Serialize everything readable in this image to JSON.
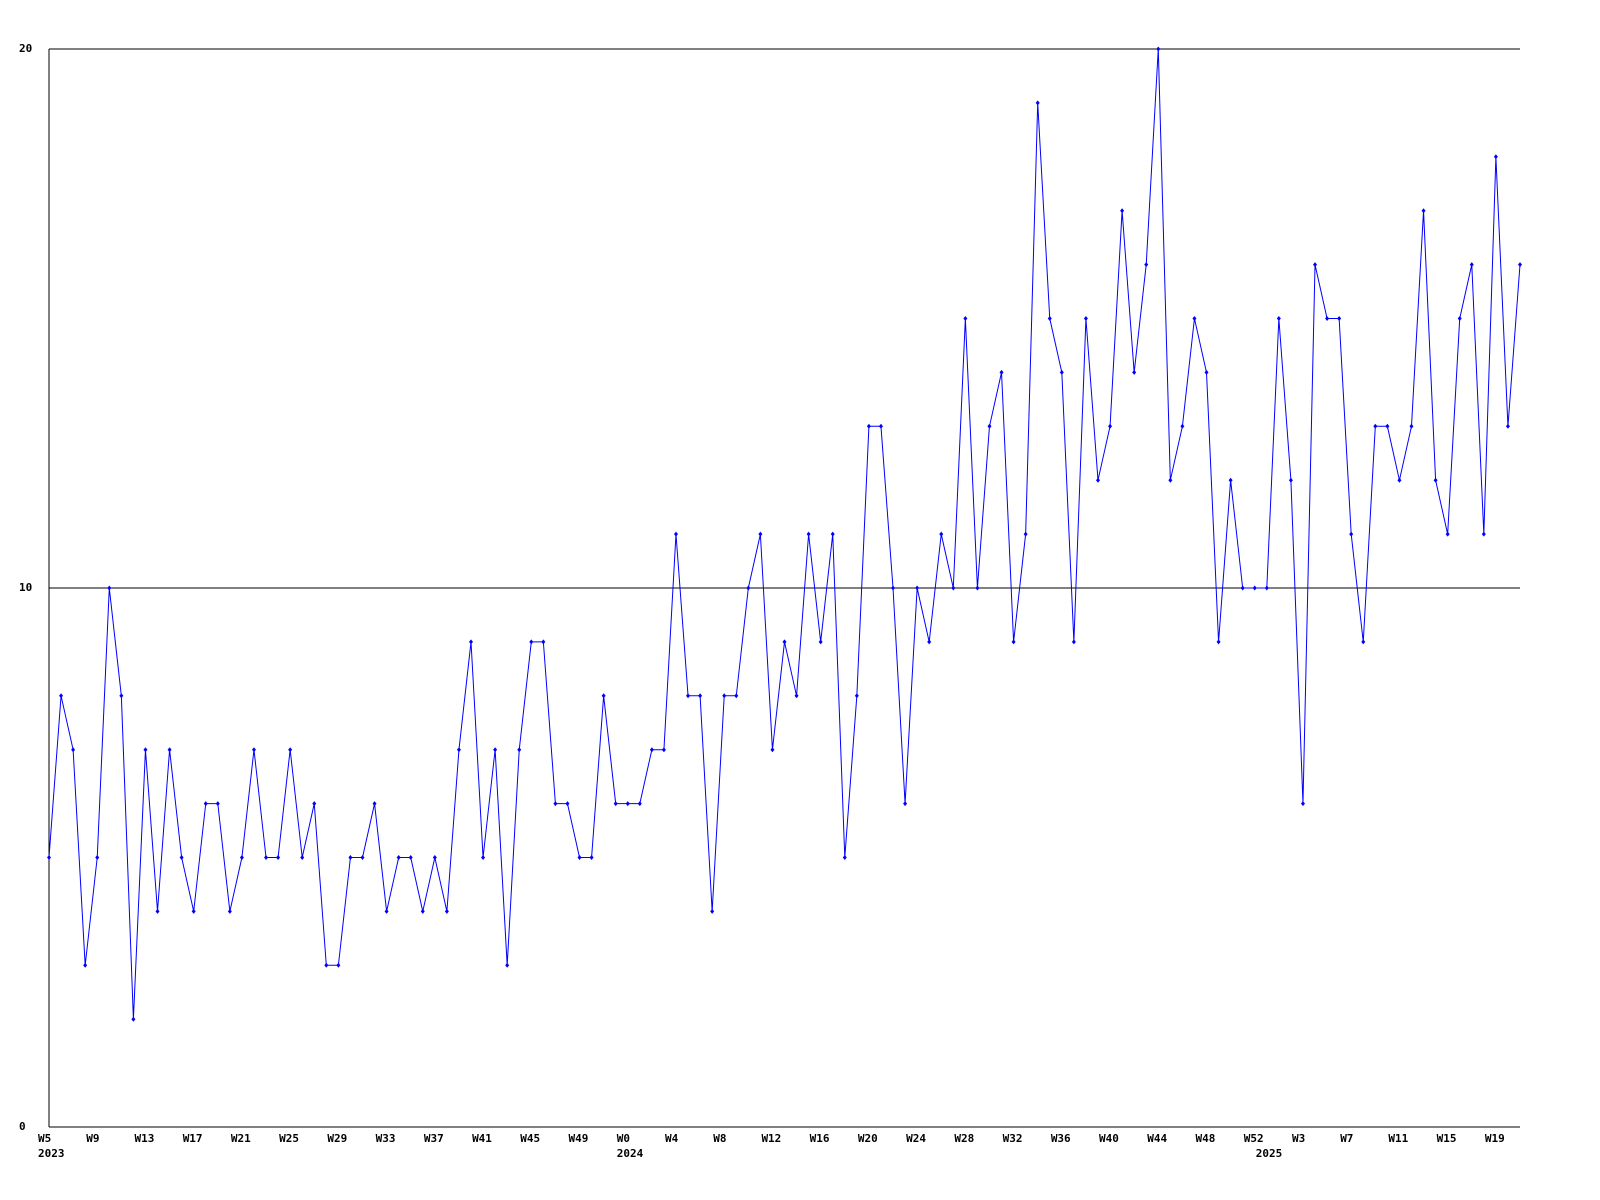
{
  "chart_data": {
    "type": "line",
    "color": "#0000ff",
    "grid": true,
    "ylim": [
      0,
      20
    ],
    "yticks": [
      0,
      10,
      20
    ],
    "categories": [
      "W5",
      null,
      null,
      null,
      "W9",
      null,
      null,
      null,
      "W13",
      null,
      null,
      null,
      "W17",
      null,
      null,
      null,
      "W21",
      null,
      null,
      null,
      "W25",
      null,
      null,
      null,
      "W29",
      null,
      null,
      null,
      "W33",
      null,
      null,
      null,
      "W37",
      null,
      null,
      null,
      "W41",
      null,
      null,
      null,
      "W45",
      null,
      null,
      null,
      "W49",
      null,
      null,
      null,
      "W0",
      null,
      null,
      null,
      "W4",
      null,
      null,
      null,
      "W8",
      null,
      null,
      null,
      "W12",
      null,
      null,
      null,
      "W16",
      null,
      null,
      null,
      "W20",
      null,
      null,
      null,
      "W24",
      null,
      null,
      null,
      "W28",
      null,
      null,
      null,
      "W32",
      null,
      null,
      null,
      "W36",
      null,
      null,
      null,
      "W40",
      null,
      null,
      null,
      "W44",
      null,
      null,
      null,
      "W48",
      null,
      null,
      null,
      "W52",
      null,
      null,
      null,
      "W3",
      null,
      null,
      null,
      "W7",
      null,
      null,
      null,
      "W11",
      null,
      null,
      null,
      "W15",
      null,
      null,
      null,
      "W19",
      null,
      null
    ],
    "years": [
      "2023",
      null,
      null,
      null,
      null,
      null,
      null,
      null,
      null,
      null,
      null,
      null,
      null,
      null,
      null,
      null,
      null,
      null,
      null,
      null,
      null,
      null,
      null,
      null,
      null,
      null,
      null,
      null,
      null,
      null,
      null,
      null,
      null,
      null,
      null,
      null,
      null,
      null,
      null,
      null,
      null,
      null,
      null,
      null,
      null,
      null,
      null,
      null,
      "2024",
      null,
      null,
      null,
      null,
      null,
      null,
      null,
      null,
      null,
      null,
      null,
      null,
      null,
      null,
      null,
      null,
      null,
      null,
      null,
      null,
      null,
      null,
      null,
      null,
      null,
      null,
      null,
      null,
      null,
      null,
      null,
      null,
      null,
      null,
      null,
      null,
      null,
      null,
      null,
      null,
      null,
      null,
      null,
      null,
      null,
      null,
      null,
      null,
      null,
      null,
      null,
      null,
      "2025",
      null,
      null,
      null,
      null,
      null,
      null,
      null,
      null,
      null,
      null,
      null,
      null,
      null,
      null,
      null,
      null,
      null,
      null,
      null,
      null,
      null
    ],
    "values": [
      5,
      8,
      7,
      3,
      5,
      10,
      8,
      2,
      7,
      4,
      7,
      5,
      4,
      6,
      6,
      4,
      5,
      7,
      5,
      5,
      7,
      5,
      6,
      3,
      3,
      5,
      5,
      6,
      4,
      5,
      5,
      4,
      5,
      4,
      7,
      9,
      5,
      7,
      3,
      7,
      9,
      9,
      6,
      6,
      5,
      5,
      8,
      6,
      6,
      6,
      7,
      7,
      11,
      8,
      8,
      4,
      8,
      8,
      10,
      11,
      7,
      9,
      8,
      11,
      9,
      11,
      5,
      8,
      13,
      13,
      10,
      6,
      10,
      9,
      11,
      10,
      15,
      10,
      13,
      14,
      9,
      11,
      19,
      15,
      14,
      9,
      15,
      12,
      13,
      17,
      14,
      16,
      20,
      12,
      13,
      15,
      14,
      9,
      12,
      10,
      10,
      10,
      15,
      12,
      6,
      16,
      15,
      15,
      11,
      9,
      13,
      13,
      12,
      13,
      17,
      12,
      11,
      15,
      16,
      11,
      18,
      13,
      16
    ]
  }
}
